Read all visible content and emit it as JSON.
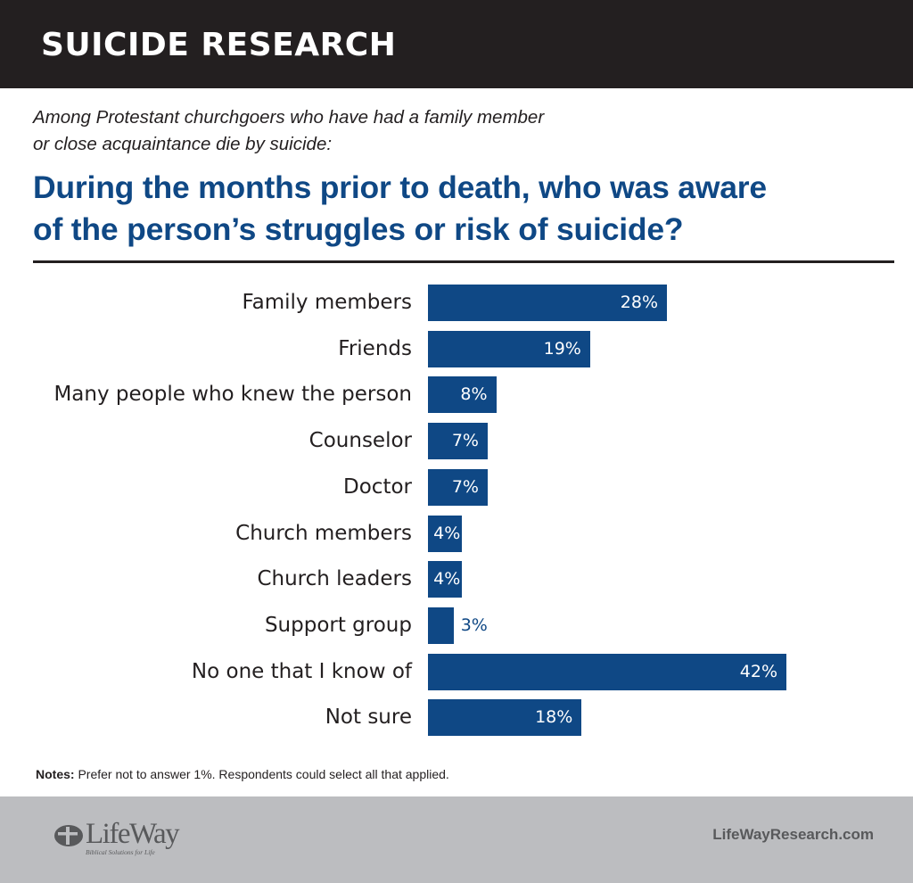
{
  "header": {
    "title": "SUICIDE RESEARCH"
  },
  "subtitle": {
    "line1": "Among Protestant churchgoers who have had a family member",
    "line2": "or close acquaintance die by suicide:"
  },
  "question": {
    "line1": "During the months prior to death, who was aware",
    "line2": "of the person’s struggles or risk of suicide?"
  },
  "colors": {
    "bar": "#0f4885",
    "header_bg": "#231f20",
    "footer_bg": "#bcbdc0",
    "title": "#0f4885"
  },
  "chart_data": {
    "type": "bar",
    "orientation": "horizontal",
    "title": "During the months prior to death, who was aware of the person’s struggles or risk of suicide?",
    "subtitle": "Among Protestant churchgoers who have had a family member or close acquaintance die by suicide:",
    "categories": [
      "Family members",
      "Friends",
      "Many people who knew the person",
      "Counselor",
      "Doctor",
      "Church members",
      "Church leaders",
      "Support group",
      "No one that I know of",
      "Not sure"
    ],
    "values": [
      28,
      19,
      8,
      7,
      7,
      4,
      4,
      3,
      42,
      18
    ],
    "value_labels": [
      "28%",
      "19%",
      "8%",
      "7%",
      "7%",
      "4%",
      "4%",
      "3%",
      "42%",
      "18%"
    ],
    "unit": "%",
    "xlabel": "",
    "ylabel": "",
    "grid": false,
    "legend": null
  },
  "notes": {
    "label": "Notes:",
    "text": " Prefer not to answer 1%. Respondents could select all that applied."
  },
  "footer": {
    "logo_word": "LifeWay",
    "logo_tagline": "Biblical Solutions for Life",
    "site": "LifeWayResearch.com"
  }
}
